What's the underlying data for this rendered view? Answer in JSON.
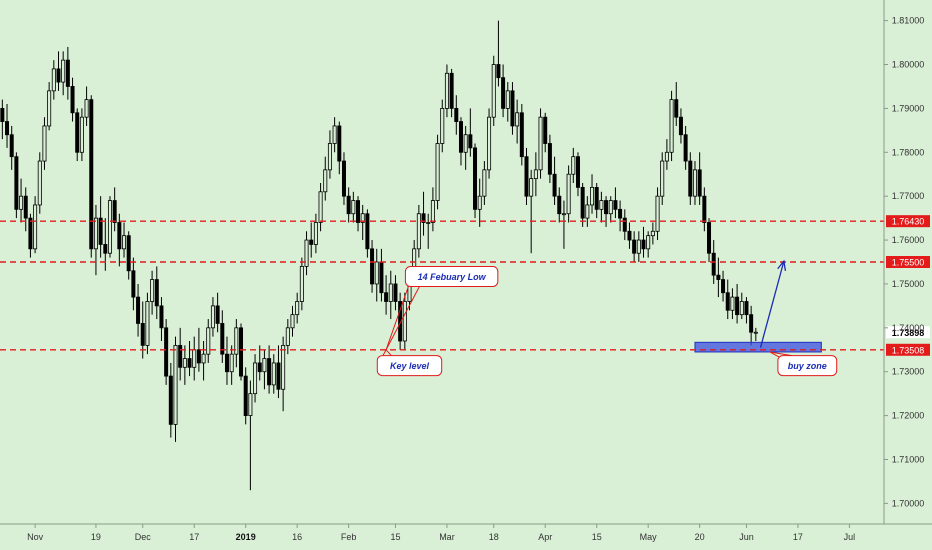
{
  "chart_data": {
    "type": "candlestick",
    "title": "",
    "xlabel": "",
    "ylabel": "",
    "ylim": [
      1.6953,
      1.8147
    ],
    "grid": false,
    "y_ticks": [
      "1.81000",
      "1.80000",
      "1.79000",
      "1.78000",
      "1.77000",
      "1.76000",
      "1.75000",
      "1.74000",
      "1.73000",
      "1.72000",
      "1.71000",
      "1.70000"
    ],
    "y_tick_values": [
      1.81,
      1.8,
      1.79,
      1.78,
      1.77,
      1.76,
      1.75,
      1.74,
      1.73,
      1.72,
      1.71,
      1.7
    ],
    "x_ticks": [
      {
        "label": "Nov",
        "index": 7,
        "bold": false
      },
      {
        "label": "19",
        "index": 20,
        "bold": false
      },
      {
        "label": "Dec",
        "index": 30,
        "bold": false
      },
      {
        "label": "17",
        "index": 41,
        "bold": false
      },
      {
        "label": "2019",
        "index": 52,
        "bold": true
      },
      {
        "label": "16",
        "index": 63,
        "bold": false
      },
      {
        "label": "Feb",
        "index": 74,
        "bold": false
      },
      {
        "label": "15",
        "index": 84,
        "bold": false
      },
      {
        "label": "Mar",
        "index": 95,
        "bold": false
      },
      {
        "label": "18",
        "index": 105,
        "bold": false
      },
      {
        "label": "Apr",
        "index": 116,
        "bold": false
      },
      {
        "label": "15",
        "index": 127,
        "bold": false
      },
      {
        "label": "May",
        "index": 138,
        "bold": false
      },
      {
        "label": "20",
        "index": 149,
        "bold": false
      },
      {
        "label": "Jun",
        "index": 159,
        "bold": false
      },
      {
        "label": "17",
        "index": 170,
        "bold": false
      },
      {
        "label": "Jul",
        "index": 181,
        "bold": false
      }
    ],
    "levels": [
      {
        "name": "resistance-upper",
        "value": 1.7643,
        "label": "1.76430",
        "color": "#e31b1b"
      },
      {
        "name": "resistance-mid",
        "value": 1.755,
        "label": "1.75500",
        "color": "#e31b1b"
      },
      {
        "name": "key-level",
        "value": 1.735,
        "label": "1.73508",
        "color": "#e31b1b"
      }
    ],
    "current_price": {
      "value": 1.73898,
      "label": "1.73898"
    },
    "buy_zone": {
      "start_index": 148,
      "end_index": 175,
      "low": 1.7345,
      "high": 1.7367,
      "color": "#3b4fe0"
    },
    "arrow": {
      "from_index": 162,
      "from_value": 1.7355,
      "to_index": 167,
      "to_value": 1.7552,
      "color": "#1a2bb5"
    },
    "annotations": [
      {
        "name": "feb-low-callout",
        "text": "14 Febuary Low",
        "box_index": 96,
        "box_value": 1.7517,
        "anchor_index": 82,
        "anchor_value": 1.735
      },
      {
        "name": "key-level-callout",
        "text": "Key level",
        "box_index": 87,
        "box_value": 1.7314,
        "anchor_index": 82,
        "anchor_value": 1.735
      },
      {
        "name": "buy-zone-callout",
        "text": "buy zone",
        "box_index": 172,
        "box_value": 1.7314,
        "anchor_index": 164,
        "anchor_value": 1.7345
      }
    ],
    "x_count": 190,
    "bars": [
      [
        1.79,
        1.792,
        1.783,
        1.787
      ],
      [
        1.787,
        1.791,
        1.781,
        1.784
      ],
      [
        1.784,
        1.786,
        1.776,
        1.779
      ],
      [
        1.779,
        1.78,
        1.765,
        1.767
      ],
      [
        1.767,
        1.774,
        1.764,
        1.77
      ],
      [
        1.77,
        1.772,
        1.762,
        1.765
      ],
      [
        1.765,
        1.766,
        1.756,
        1.758
      ],
      [
        1.758,
        1.77,
        1.757,
        1.768
      ],
      [
        1.768,
        1.78,
        1.766,
        1.778
      ],
      [
        1.778,
        1.788,
        1.776,
        1.786
      ],
      [
        1.786,
        1.796,
        1.785,
        1.794
      ],
      [
        1.794,
        1.801,
        1.792,
        1.799
      ],
      [
        1.799,
        1.803,
        1.794,
        1.796
      ],
      [
        1.796,
        1.803,
        1.793,
        1.801
      ],
      [
        1.801,
        1.804,
        1.792,
        1.795
      ],
      [
        1.795,
        1.797,
        1.787,
        1.789
      ],
      [
        1.789,
        1.79,
        1.778,
        1.78
      ],
      [
        1.78,
        1.79,
        1.778,
        1.788
      ],
      [
        1.788,
        1.795,
        1.786,
        1.792
      ],
      [
        1.792,
        1.793,
        1.756,
        1.758
      ],
      [
        1.758,
        1.768,
        1.752,
        1.765
      ],
      [
        1.765,
        1.77,
        1.756,
        1.759
      ],
      [
        1.759,
        1.765,
        1.753,
        1.757
      ],
      [
        1.757,
        1.77,
        1.756,
        1.769
      ],
      [
        1.769,
        1.772,
        1.762,
        1.764
      ],
      [
        1.764,
        1.766,
        1.754,
        1.758
      ],
      [
        1.758,
        1.764,
        1.756,
        1.761
      ],
      [
        1.761,
        1.762,
        1.751,
        1.753
      ],
      [
        1.753,
        1.756,
        1.744,
        1.747
      ],
      [
        1.747,
        1.75,
        1.738,
        1.741
      ],
      [
        1.741,
        1.746,
        1.733,
        1.736
      ],
      [
        1.736,
        1.748,
        1.734,
        1.746
      ],
      [
        1.746,
        1.753,
        1.743,
        1.751
      ],
      [
        1.751,
        1.754,
        1.742,
        1.745
      ],
      [
        1.745,
        1.747,
        1.737,
        1.74
      ],
      [
        1.74,
        1.742,
        1.727,
        1.729
      ],
      [
        1.729,
        1.732,
        1.715,
        1.718
      ],
      [
        1.718,
        1.738,
        1.714,
        1.736
      ],
      [
        1.736,
        1.74,
        1.728,
        1.731
      ],
      [
        1.731,
        1.736,
        1.727,
        1.733
      ],
      [
        1.733,
        1.737,
        1.729,
        1.731
      ],
      [
        1.731,
        1.738,
        1.728,
        1.735
      ],
      [
        1.735,
        1.74,
        1.73,
        1.732
      ],
      [
        1.732,
        1.737,
        1.728,
        1.734
      ],
      [
        1.734,
        1.742,
        1.732,
        1.74
      ],
      [
        1.74,
        1.747,
        1.738,
        1.745
      ],
      [
        1.745,
        1.748,
        1.739,
        1.741
      ],
      [
        1.741,
        1.744,
        1.732,
        1.734
      ],
      [
        1.734,
        1.738,
        1.727,
        1.73
      ],
      [
        1.73,
        1.736,
        1.727,
        1.734
      ],
      [
        1.734,
        1.742,
        1.731,
        1.74
      ],
      [
        1.74,
        1.741,
        1.728,
        1.729
      ],
      [
        1.729,
        1.731,
        1.718,
        1.72
      ],
      [
        1.72,
        1.728,
        1.703,
        1.725
      ],
      [
        1.725,
        1.734,
        1.723,
        1.732
      ],
      [
        1.732,
        1.736,
        1.728,
        1.73
      ],
      [
        1.73,
        1.735,
        1.726,
        1.733
      ],
      [
        1.733,
        1.736,
        1.725,
        1.727
      ],
      [
        1.727,
        1.734,
        1.725,
        1.732
      ],
      [
        1.732,
        1.736,
        1.724,
        1.726
      ],
      [
        1.726,
        1.738,
        1.721,
        1.736
      ],
      [
        1.736,
        1.742,
        1.734,
        1.74
      ],
      [
        1.74,
        1.745,
        1.738,
        1.743
      ],
      [
        1.743,
        1.748,
        1.741,
        1.746
      ],
      [
        1.746,
        1.756,
        1.744,
        1.754
      ],
      [
        1.754,
        1.762,
        1.752,
        1.76
      ],
      [
        1.76,
        1.764,
        1.756,
        1.759
      ],
      [
        1.759,
        1.766,
        1.757,
        1.764
      ],
      [
        1.764,
        1.773,
        1.762,
        1.771
      ],
      [
        1.771,
        1.779,
        1.769,
        1.776
      ],
      [
        1.776,
        1.785,
        1.774,
        1.782
      ],
      [
        1.782,
        1.788,
        1.78,
        1.786
      ],
      [
        1.786,
        1.787,
        1.775,
        1.778
      ],
      [
        1.778,
        1.78,
        1.768,
        1.77
      ],
      [
        1.77,
        1.772,
        1.764,
        1.766
      ],
      [
        1.766,
        1.771,
        1.764,
        1.769
      ],
      [
        1.769,
        1.77,
        1.762,
        1.764
      ],
      [
        1.764,
        1.768,
        1.76,
        1.766
      ],
      [
        1.766,
        1.767,
        1.756,
        1.758
      ],
      [
        1.758,
        1.76,
        1.748,
        1.75
      ],
      [
        1.75,
        1.758,
        1.746,
        1.755
      ],
      [
        1.755,
        1.758,
        1.746,
        1.748
      ],
      [
        1.748,
        1.752,
        1.743,
        1.746
      ],
      [
        1.746,
        1.753,
        1.742,
        1.75
      ],
      [
        1.75,
        1.752,
        1.744,
        1.746
      ],
      [
        1.746,
        1.748,
        1.735,
        1.737
      ],
      [
        1.737,
        1.748,
        1.735,
        1.746
      ],
      [
        1.746,
        1.754,
        1.744,
        1.752
      ],
      [
        1.752,
        1.76,
        1.75,
        1.758
      ],
      [
        1.758,
        1.768,
        1.756,
        1.766
      ],
      [
        1.766,
        1.771,
        1.761,
        1.764
      ],
      [
        1.764,
        1.766,
        1.758,
        1.764
      ],
      [
        1.764,
        1.772,
        1.762,
        1.769
      ],
      [
        1.769,
        1.784,
        1.767,
        1.782
      ],
      [
        1.782,
        1.792,
        1.78,
        1.79
      ],
      [
        1.79,
        1.8,
        1.788,
        1.798
      ],
      [
        1.798,
        1.799,
        1.788,
        1.79
      ],
      [
        1.79,
        1.793,
        1.784,
        1.787
      ],
      [
        1.787,
        1.788,
        1.777,
        1.78
      ],
      [
        1.78,
        1.786,
        1.776,
        1.784
      ],
      [
        1.784,
        1.79,
        1.779,
        1.781
      ],
      [
        1.781,
        1.782,
        1.765,
        1.767
      ],
      [
        1.767,
        1.774,
        1.763,
        1.77
      ],
      [
        1.77,
        1.778,
        1.768,
        1.776
      ],
      [
        1.776,
        1.79,
        1.774,
        1.788
      ],
      [
        1.788,
        1.802,
        1.786,
        1.8
      ],
      [
        1.8,
        1.81,
        1.795,
        1.797
      ],
      [
        1.797,
        1.8,
        1.788,
        1.79
      ],
      [
        1.79,
        1.796,
        1.787,
        1.794
      ],
      [
        1.794,
        1.796,
        1.784,
        1.786
      ],
      [
        1.786,
        1.792,
        1.782,
        1.789
      ],
      [
        1.789,
        1.791,
        1.777,
        1.779
      ],
      [
        1.779,
        1.781,
        1.768,
        1.77
      ],
      [
        1.77,
        1.776,
        1.757,
        1.774
      ],
      [
        1.774,
        1.78,
        1.77,
        1.776
      ],
      [
        1.776,
        1.79,
        1.774,
        1.788
      ],
      [
        1.788,
        1.789,
        1.78,
        1.782
      ],
      [
        1.782,
        1.784,
        1.773,
        1.775
      ],
      [
        1.775,
        1.779,
        1.768,
        1.77
      ],
      [
        1.77,
        1.772,
        1.764,
        1.766
      ],
      [
        1.766,
        1.769,
        1.758,
        1.766
      ],
      [
        1.766,
        1.777,
        1.764,
        1.775
      ],
      [
        1.775,
        1.781,
        1.773,
        1.779
      ],
      [
        1.779,
        1.78,
        1.77,
        1.772
      ],
      [
        1.772,
        1.773,
        1.763,
        1.765
      ],
      [
        1.765,
        1.77,
        1.763,
        1.768
      ],
      [
        1.768,
        1.775,
        1.766,
        1.772
      ],
      [
        1.772,
        1.773,
        1.765,
        1.767
      ],
      [
        1.767,
        1.771,
        1.764,
        1.769
      ],
      [
        1.769,
        1.77,
        1.763,
        1.766
      ],
      [
        1.766,
        1.77,
        1.764,
        1.769
      ],
      [
        1.769,
        1.772,
        1.765,
        1.767
      ],
      [
        1.767,
        1.769,
        1.762,
        1.765
      ],
      [
        1.765,
        1.767,
        1.76,
        1.762
      ],
      [
        1.762,
        1.764,
        1.758,
        1.76
      ],
      [
        1.76,
        1.762,
        1.755,
        1.757
      ],
      [
        1.757,
        1.762,
        1.755,
        1.76
      ],
      [
        1.76,
        1.763,
        1.756,
        1.758
      ],
      [
        1.758,
        1.762,
        1.756,
        1.761
      ],
      [
        1.761,
        1.764,
        1.759,
        1.762
      ],
      [
        1.762,
        1.772,
        1.76,
        1.77
      ],
      [
        1.77,
        1.78,
        1.768,
        1.778
      ],
      [
        1.778,
        1.783,
        1.776,
        1.78
      ],
      [
        1.78,
        1.794,
        1.778,
        1.792
      ],
      [
        1.792,
        1.796,
        1.786,
        1.788
      ],
      [
        1.788,
        1.79,
        1.782,
        1.784
      ],
      [
        1.784,
        1.786,
        1.776,
        1.778
      ],
      [
        1.778,
        1.78,
        1.768,
        1.77
      ],
      [
        1.77,
        1.778,
        1.768,
        1.776
      ],
      [
        1.776,
        1.78,
        1.768,
        1.77
      ],
      [
        1.77,
        1.772,
        1.762,
        1.764
      ],
      [
        1.764,
        1.765,
        1.755,
        1.757
      ],
      [
        1.757,
        1.76,
        1.75,
        1.752
      ],
      [
        1.752,
        1.756,
        1.747,
        1.751
      ],
      [
        1.751,
        1.753,
        1.746,
        1.748
      ],
      [
        1.748,
        1.751,
        1.742,
        1.744
      ],
      [
        1.744,
        1.749,
        1.742,
        1.747
      ],
      [
        1.747,
        1.75,
        1.741,
        1.743
      ],
      [
        1.743,
        1.748,
        1.742,
        1.746
      ],
      [
        1.746,
        1.747,
        1.741,
        1.743
      ],
      [
        1.743,
        1.745,
        1.736,
        1.739
      ],
      [
        1.739,
        1.74,
        1.737,
        1.739
      ]
    ]
  }
}
